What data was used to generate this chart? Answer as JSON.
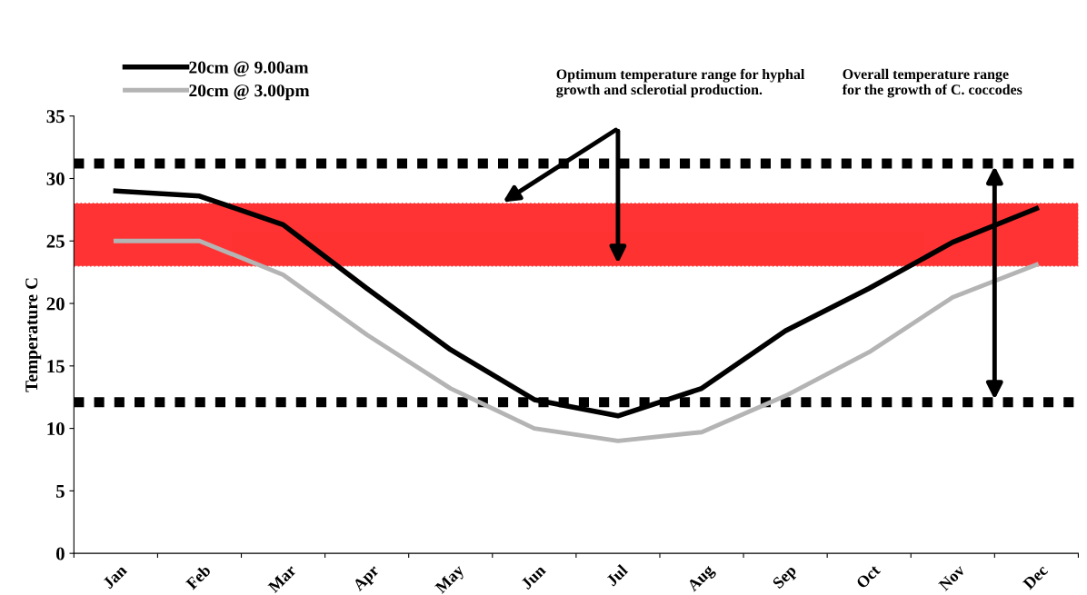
{
  "chart_data": {
    "type": "line",
    "ylabel": "Temperature C",
    "categories": [
      "Jan",
      "Feb",
      "Mar",
      "Apr",
      "May",
      "Jun",
      "Jul",
      "Aug",
      "Sep",
      "Oct",
      "Nov",
      "Dec"
    ],
    "series": [
      {
        "name": "20cm @ 9.00am",
        "color": "#000000",
        "values": [
          29.0,
          28.6,
          26.3,
          21.2,
          16.3,
          12.3,
          11.0,
          13.2,
          17.8,
          21.2,
          24.9,
          27.6
        ]
      },
      {
        "name": "20cm @ 3.00pm",
        "color": "#b4b4b4",
        "values": [
          25.0,
          25.0,
          22.3,
          17.5,
          13.2,
          10.0,
          9.0,
          9.7,
          12.6,
          16.1,
          20.5,
          23.1
        ]
      }
    ],
    "ylim": [
      0,
      35
    ],
    "yticks": [
      0,
      5,
      10,
      15,
      20,
      25,
      30,
      35
    ],
    "grid": false,
    "legend": "top left",
    "marker": "none",
    "line_style": "solid",
    "bands": [
      {
        "axis": "y",
        "from": 23,
        "to": 28,
        "color": "#ff0000"
      }
    ],
    "ref_lines": [
      {
        "axis": "y",
        "value": 31.2,
        "color": "#000000",
        "line_style": "dotted"
      },
      {
        "axis": "y",
        "value": 12.1,
        "color": "#000000",
        "line_style": "dotted"
      }
    ],
    "annotations": [
      "Optimum temperature range for hyphal\ngrowth and sclerotial production.",
      "Overall temperature range\nfor the growth of C. coccodes"
    ]
  }
}
